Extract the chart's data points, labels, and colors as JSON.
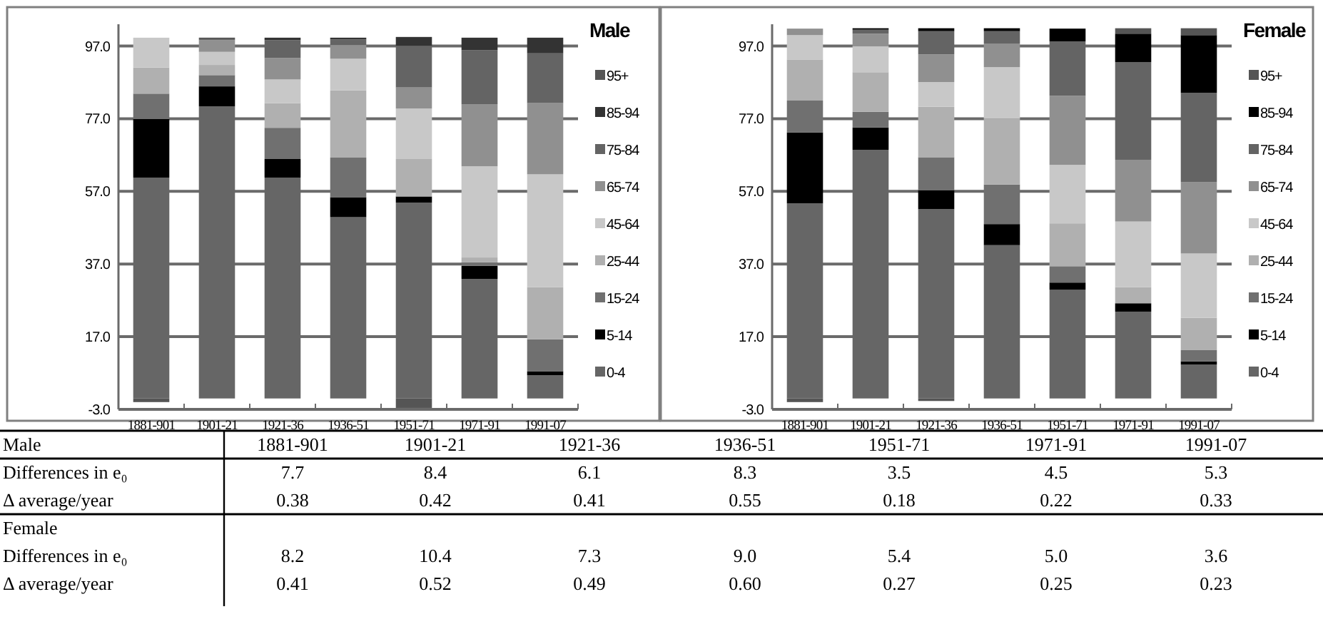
{
  "chart_data": [
    {
      "type": "bar",
      "legend_title": "Male",
      "stacked": true,
      "legend": "right",
      "grid": "y",
      "categories": [
        "1881-901",
        "1901-21",
        "1921-36",
        "1936-51",
        "1951-71",
        "1971-91",
        "1991-07"
      ],
      "ylim": [
        -3,
        103
      ],
      "yticks": [
        {
          "value": -3,
          "label": "-3.0"
        },
        {
          "value": 17,
          "label": "17.0"
        },
        {
          "value": 37,
          "label": "37.0"
        },
        {
          "value": 57,
          "label": "57.0"
        },
        {
          "value": 77,
          "label": "77.0"
        },
        {
          "value": 97,
          "label": "97.0"
        }
      ],
      "series": [
        {
          "name": "0-4",
          "color": "#666666",
          "values": [
            60.8,
            80.4,
            60.8,
            49.9,
            53.9,
            32.9,
            6.4
          ]
        },
        {
          "name": "5-14",
          "color": "#000000",
          "values": [
            16.1,
            5.5,
            5.1,
            5.5,
            1.7,
            3.6,
            1.1
          ]
        },
        {
          "name": "15-24",
          "color": "#707070",
          "values": [
            7.0,
            3.1,
            8.6,
            10.9,
            0,
            1.0,
            8.8
          ]
        },
        {
          "name": "25-44",
          "color": "#b0b0b0",
          "values": [
            7.2,
            2.8,
            6.8,
            18.5,
            10.3,
            1.3,
            14.3
          ]
        },
        {
          "name": "45-64",
          "color": "#c8c8c8",
          "values": [
            8.2,
            3.6,
            6.5,
            8.7,
            13.9,
            25.1,
            31.1
          ]
        },
        {
          "name": "65-74",
          "color": "#909090",
          "values": [
            0,
            3.2,
            5.9,
            3.8,
            5.8,
            17.1,
            19.6
          ]
        },
        {
          "name": "75-84",
          "color": "#646464",
          "values": [
            0,
            0.5,
            4.9,
            1.5,
            11.5,
            14.9,
            13.7
          ]
        },
        {
          "name": "85-94",
          "color": "#333333",
          "values": [
            0,
            0.2,
            0.7,
            0.5,
            2.4,
            3.4,
            4.3
          ]
        },
        {
          "name": "95+",
          "color": "#555555",
          "values": [
            -1,
            0,
            0,
            0,
            -2.6,
            0,
            0
          ]
        }
      ]
    },
    {
      "type": "bar",
      "legend_title": "Female",
      "stacked": true,
      "legend": "right",
      "grid": "y",
      "categories": [
        "1881-901",
        "1901-21",
        "1921-36",
        "1936-51",
        "1951-71",
        "1971-91",
        "1991-07"
      ],
      "ylim": [
        -3,
        103
      ],
      "yticks": [
        {
          "value": -3,
          "label": "-3.0"
        },
        {
          "value": 17,
          "label": "17.0"
        },
        {
          "value": 37,
          "label": "37.0"
        },
        {
          "value": 57,
          "label": "57.0"
        },
        {
          "value": 77,
          "label": "77.0"
        },
        {
          "value": 97,
          "label": "97.0"
        }
      ],
      "series": [
        {
          "name": "0-4",
          "color": "#666666",
          "values": [
            53.7,
            68.4,
            52.1,
            42.2,
            29.9,
            23.9,
            9.3
          ]
        },
        {
          "name": "5-14",
          "color": "#000000",
          "values": [
            19.5,
            6.2,
            5.2,
            5.8,
            2.0,
            2.3,
            0.9
          ]
        },
        {
          "name": "15-24",
          "color": "#707070",
          "values": [
            8.8,
            4.3,
            9.1,
            10.9,
            4.5,
            0,
            3.1
          ]
        },
        {
          "name": "25-44",
          "color": "#b0b0b0",
          "values": [
            11.3,
            10.9,
            13.9,
            18.1,
            11.8,
            4.4,
            8.9
          ]
        },
        {
          "name": "45-64",
          "color": "#c8c8c8",
          "values": [
            6.7,
            7.2,
            6.8,
            14.2,
            16.1,
            18.1,
            17.7
          ]
        },
        {
          "name": "65-74",
          "color": "#909090",
          "values": [
            1.8,
            3.4,
            7.6,
            6.5,
            19.0,
            17.0,
            19.7
          ]
        },
        {
          "name": "75-84",
          "color": "#646464",
          "values": [
            0,
            1.1,
            6.4,
            3.4,
            15.0,
            26.9,
            24.5
          ]
        },
        {
          "name": "85-94",
          "color": "#000000",
          "values": [
            0,
            0.4,
            0.8,
            0.8,
            3.5,
            7.8,
            15.9
          ]
        },
        {
          "name": "95+",
          "color": "#555555",
          "values": [
            -1,
            0,
            -0.7,
            0,
            0,
            1.5,
            1.9
          ]
        }
      ]
    },
    {
      "type": "other",
      "annotations": [
        "Male",
        "1881-901",
        "1901-21",
        "1921-36",
        "1936-51",
        "1951-71",
        "1971-91",
        "1991-07",
        "Differences in e₀",
        "7.7",
        "8.4",
        "6.1",
        "8.3",
        "3.5",
        "4.5",
        "5.3",
        "Δ average/year",
        "0.38",
        "0.42",
        "0.41",
        "0.55",
        "0.18",
        "0.22",
        "0.33",
        "Female",
        null,
        null,
        null,
        null,
        null,
        null,
        null,
        "Differences in e₀",
        "8.2",
        "10.4",
        "7.3",
        "9.0",
        "5.4",
        "5.0",
        "3.6",
        "Δ average/year",
        "0.41",
        "0.52",
        "0.49",
        "0.60",
        "0.27",
        "0.25",
        "0.23"
      ]
    }
  ]
}
